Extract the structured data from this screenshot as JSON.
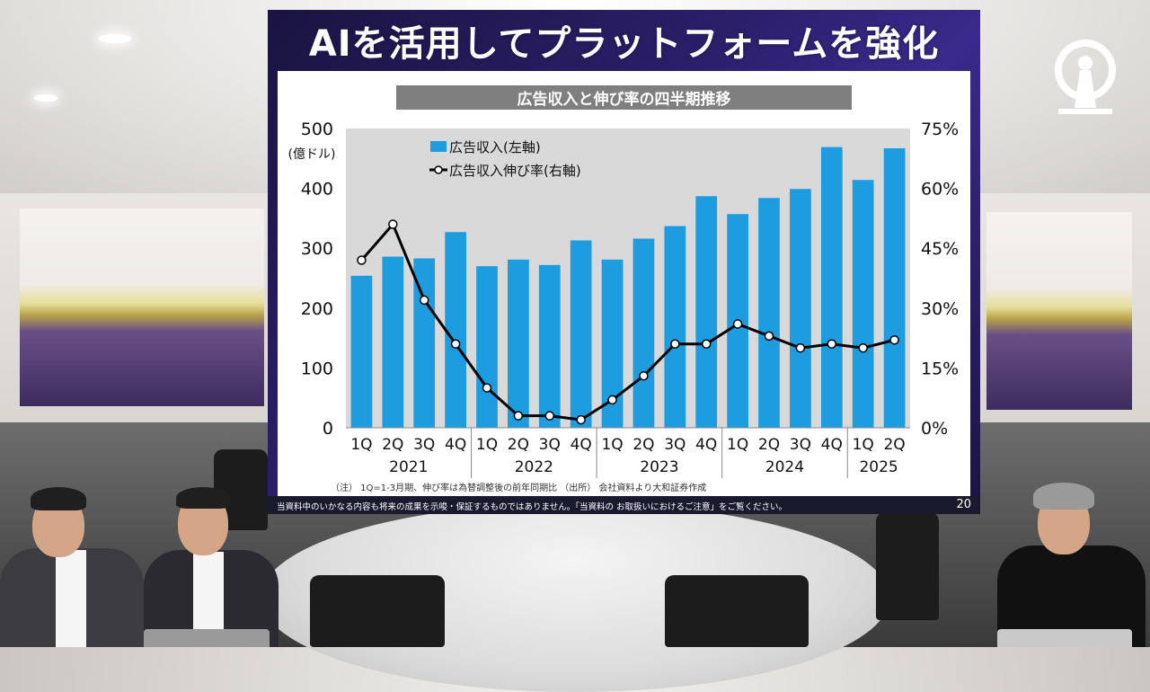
{
  "slide": {
    "title": "AIを活用してプラットフォームを強化",
    "chart_title": "広告収入と伸び率の四半期推移",
    "note": "（注） 1Q=1-3月期、伸び率は為替調整後の前年同期比 （出所） 会社資料より大和証券作成",
    "footer": "当資料中のいかなる内容も将来の成果を示唆・保証するものではありません。「当資料の お取扱いにおけるご注意」をご覧ください。",
    "page_number": "20"
  },
  "chart_data": {
    "type": "bar",
    "title": "広告収入と伸び率の四半期推移",
    "categories": [
      "1Q",
      "2Q",
      "3Q",
      "4Q",
      "1Q",
      "2Q",
      "3Q",
      "4Q",
      "1Q",
      "2Q",
      "3Q",
      "4Q",
      "1Q",
      "2Q",
      "3Q",
      "4Q",
      "1Q",
      "2Q"
    ],
    "years": [
      {
        "label": "2021",
        "count": 4
      },
      {
        "label": "2022",
        "count": 4
      },
      {
        "label": "2023",
        "count": 4
      },
      {
        "label": "2024",
        "count": 4
      },
      {
        "label": "2025",
        "count": 2
      }
    ],
    "series": [
      {
        "name": "広告収入(左軸)",
        "type": "bar",
        "axis": "left",
        "color": "#1e9ce0",
        "values": [
          254,
          286,
          283,
          327,
          270,
          281,
          272,
          313,
          281,
          316,
          337,
          387,
          357,
          384,
          399,
          469,
          414,
          467
        ]
      },
      {
        "name": "広告収入伸び率(右軸)",
        "type": "line",
        "axis": "right",
        "color": "#000000",
        "values": [
          42,
          51,
          32,
          21,
          10,
          3,
          3,
          2,
          7,
          13,
          21,
          21,
          26,
          23,
          20,
          21,
          20,
          22
        ]
      }
    ],
    "y_left": {
      "label": "(億ドル)",
      "min": 0,
      "max": 500,
      "ticks": [
        "0",
        "100",
        "200",
        "300",
        "400",
        "500"
      ]
    },
    "y_right": {
      "min": 0,
      "max": 75,
      "ticks": [
        "0%",
        "15%",
        "30%",
        "45%",
        "60%",
        "75%"
      ]
    },
    "legend_position": "top-left",
    "grid": false
  },
  "colors": {
    "bar": "#1e9ce0",
    "line": "#000000",
    "slide_bg": "#2b1f6b",
    "chart_title_bg": "#7f7f7f"
  },
  "logo": {
    "icon": "keyhole-person-logo-icon"
  }
}
